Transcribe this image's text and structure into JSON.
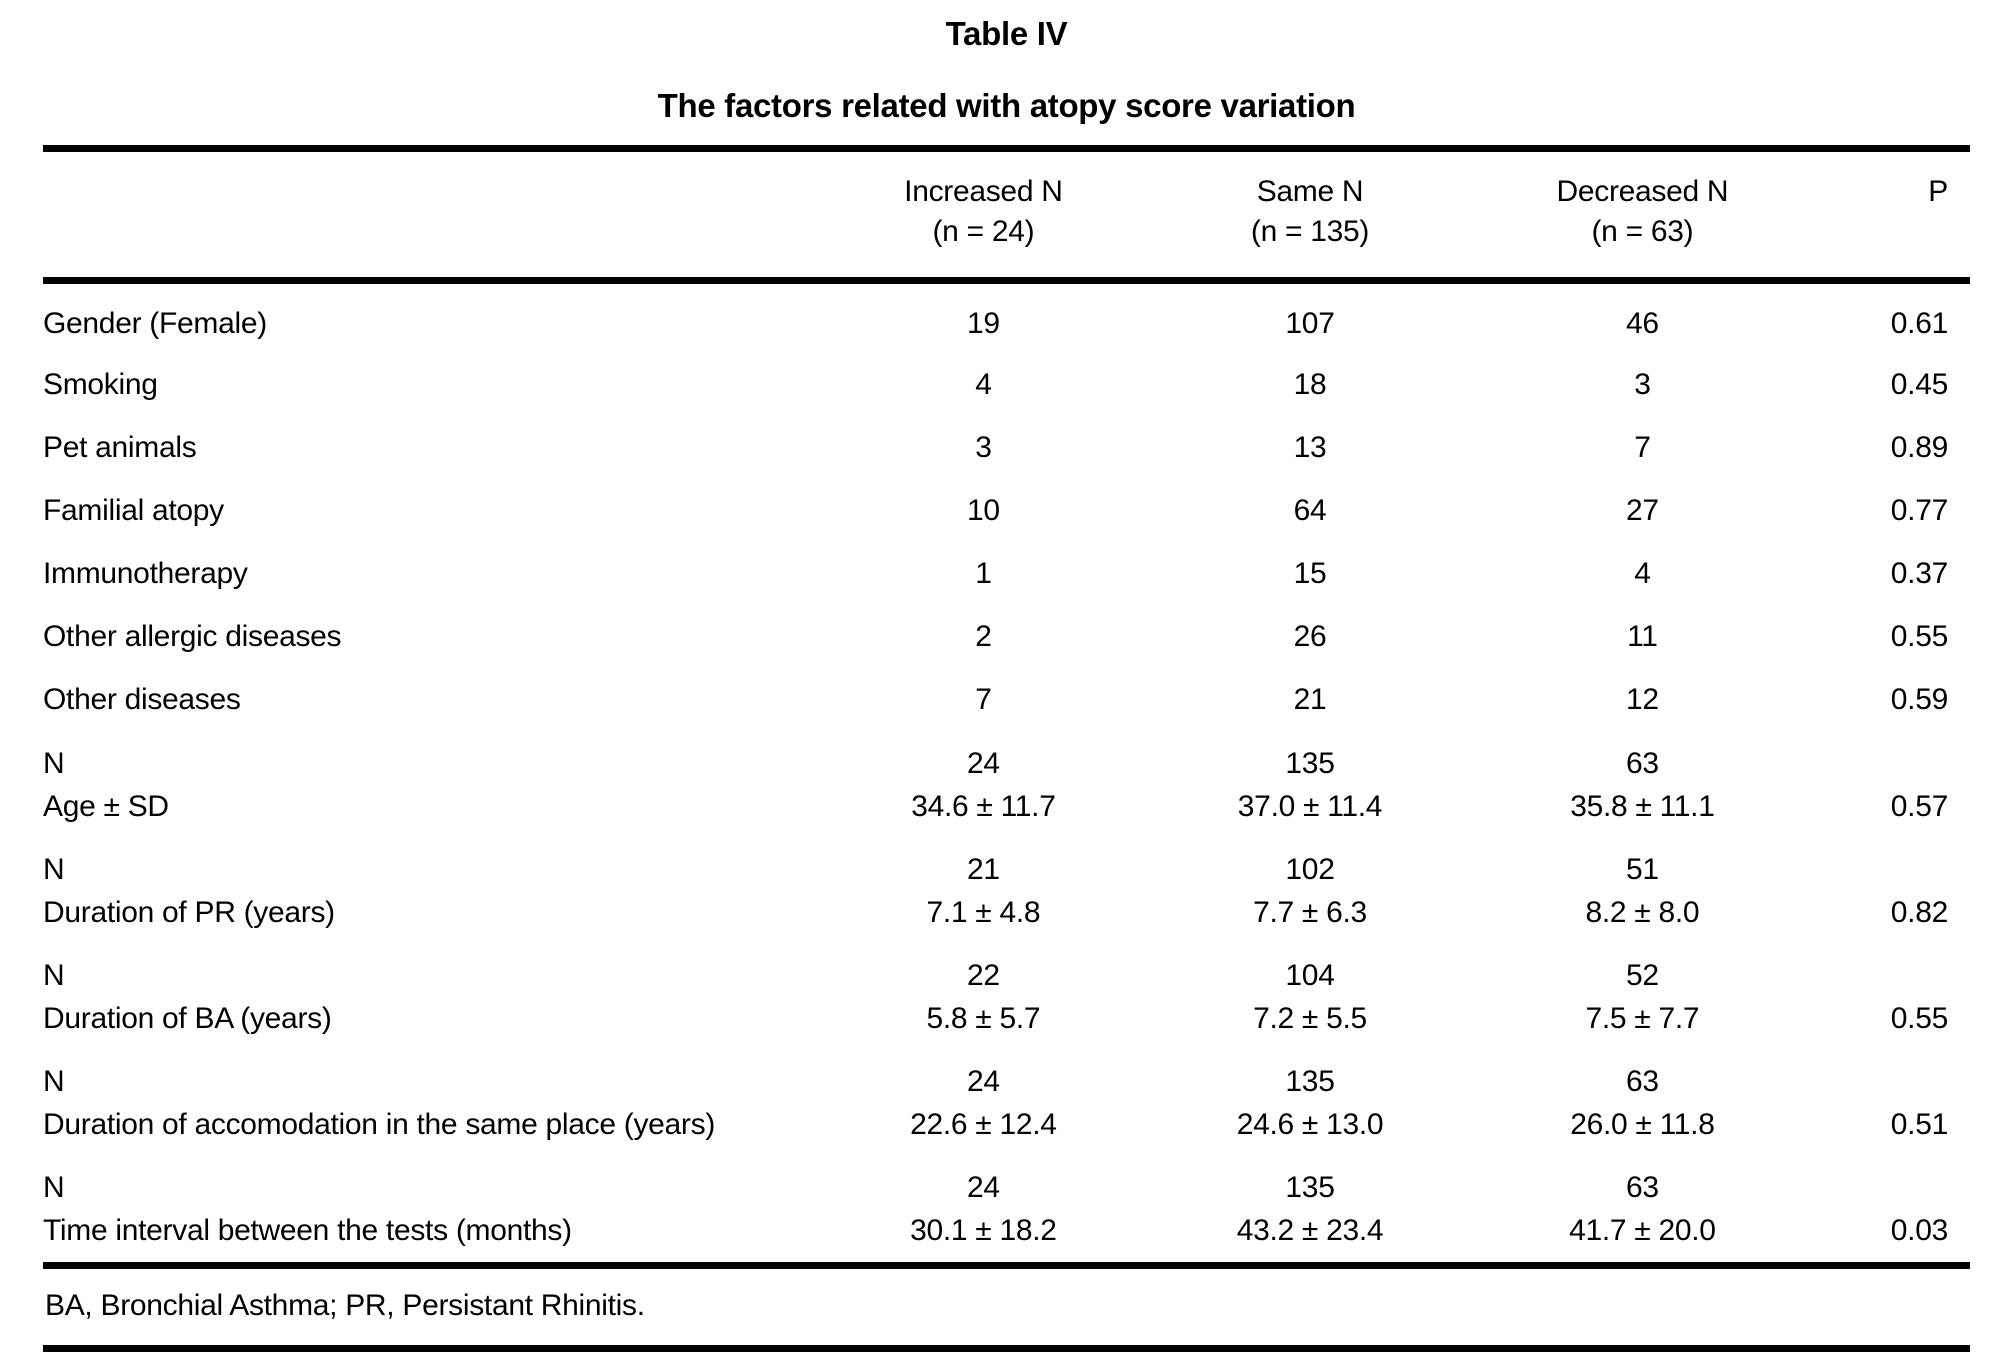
{
  "table": {
    "title": "Table IV",
    "subtitle": "The factors related with atopy score variation",
    "columns": [
      {
        "lines": [
          "Increased N",
          "(n = 24)"
        ]
      },
      {
        "lines": [
          "Same N",
          "(n = 135)"
        ]
      },
      {
        "lines": [
          "Decreased N",
          "(n = 63)"
        ]
      },
      {
        "lines": [
          "P"
        ]
      }
    ],
    "rows": [
      {
        "label": [
          "Gender (Female)"
        ],
        "increased": [
          "19"
        ],
        "same": [
          "107"
        ],
        "decreased": [
          "46"
        ],
        "p": "0.61"
      },
      {
        "label": [
          "Smoking"
        ],
        "increased": [
          "4"
        ],
        "same": [
          "18"
        ],
        "decreased": [
          "3"
        ],
        "p": "0.45"
      },
      {
        "label": [
          "Pet animals"
        ],
        "increased": [
          "3"
        ],
        "same": [
          "13"
        ],
        "decreased": [
          "7"
        ],
        "p": "0.89"
      },
      {
        "label": [
          "Familial atopy"
        ],
        "increased": [
          "10"
        ],
        "same": [
          "64"
        ],
        "decreased": [
          "27"
        ],
        "p": "0.77"
      },
      {
        "label": [
          "Immunotherapy"
        ],
        "increased": [
          "1"
        ],
        "same": [
          "15"
        ],
        "decreased": [
          "4"
        ],
        "p": "0.37"
      },
      {
        "label": [
          "Other allergic diseases"
        ],
        "increased": [
          "2"
        ],
        "same": [
          "26"
        ],
        "decreased": [
          "11"
        ],
        "p": "0.55"
      },
      {
        "label": [
          "Other diseases"
        ],
        "increased": [
          "7"
        ],
        "same": [
          "21"
        ],
        "decreased": [
          "12"
        ],
        "p": "0.59"
      },
      {
        "label": [
          "N",
          "Age ± SD"
        ],
        "increased": [
          "24",
          "34.6 ± 11.7"
        ],
        "same": [
          "135",
          "37.0 ± 11.4"
        ],
        "decreased": [
          "63",
          "35.8 ± 11.1"
        ],
        "p": "0.57"
      },
      {
        "label": [
          "N",
          "Duration of PR (years)"
        ],
        "increased": [
          "21",
          "7.1 ± 4.8"
        ],
        "same": [
          "102",
          "7.7 ± 6.3"
        ],
        "decreased": [
          "51",
          "8.2 ± 8.0"
        ],
        "p": "0.82"
      },
      {
        "label": [
          "N",
          "Duration of BA (years)"
        ],
        "increased": [
          "22",
          "5.8 ± 5.7"
        ],
        "same": [
          "104",
          "7.2 ± 5.5"
        ],
        "decreased": [
          "52",
          "7.5 ± 7.7"
        ],
        "p": "0.55"
      },
      {
        "label": [
          "N",
          "Duration of accomodation in the same place (years)"
        ],
        "increased": [
          "24",
          "22.6 ± 12.4"
        ],
        "same": [
          "135",
          "24.6 ± 13.0"
        ],
        "decreased": [
          "63",
          "26.0 ± 11.8"
        ],
        "p": "0.51"
      },
      {
        "label": [
          "N",
          "Time interval between the tests (months)"
        ],
        "increased": [
          "24",
          "30.1 ± 18.2"
        ],
        "same": [
          "135",
          "43.2 ± 23.4"
        ],
        "decreased": [
          "63",
          "41.7 ± 20.0"
        ],
        "p": "0.03"
      }
    ],
    "footnote": "BA, Bronchial Asthma; PR, Persistant Rhinitis."
  },
  "colors": {
    "text": "#000000",
    "background": "#ffffff",
    "rule": "#000000"
  }
}
